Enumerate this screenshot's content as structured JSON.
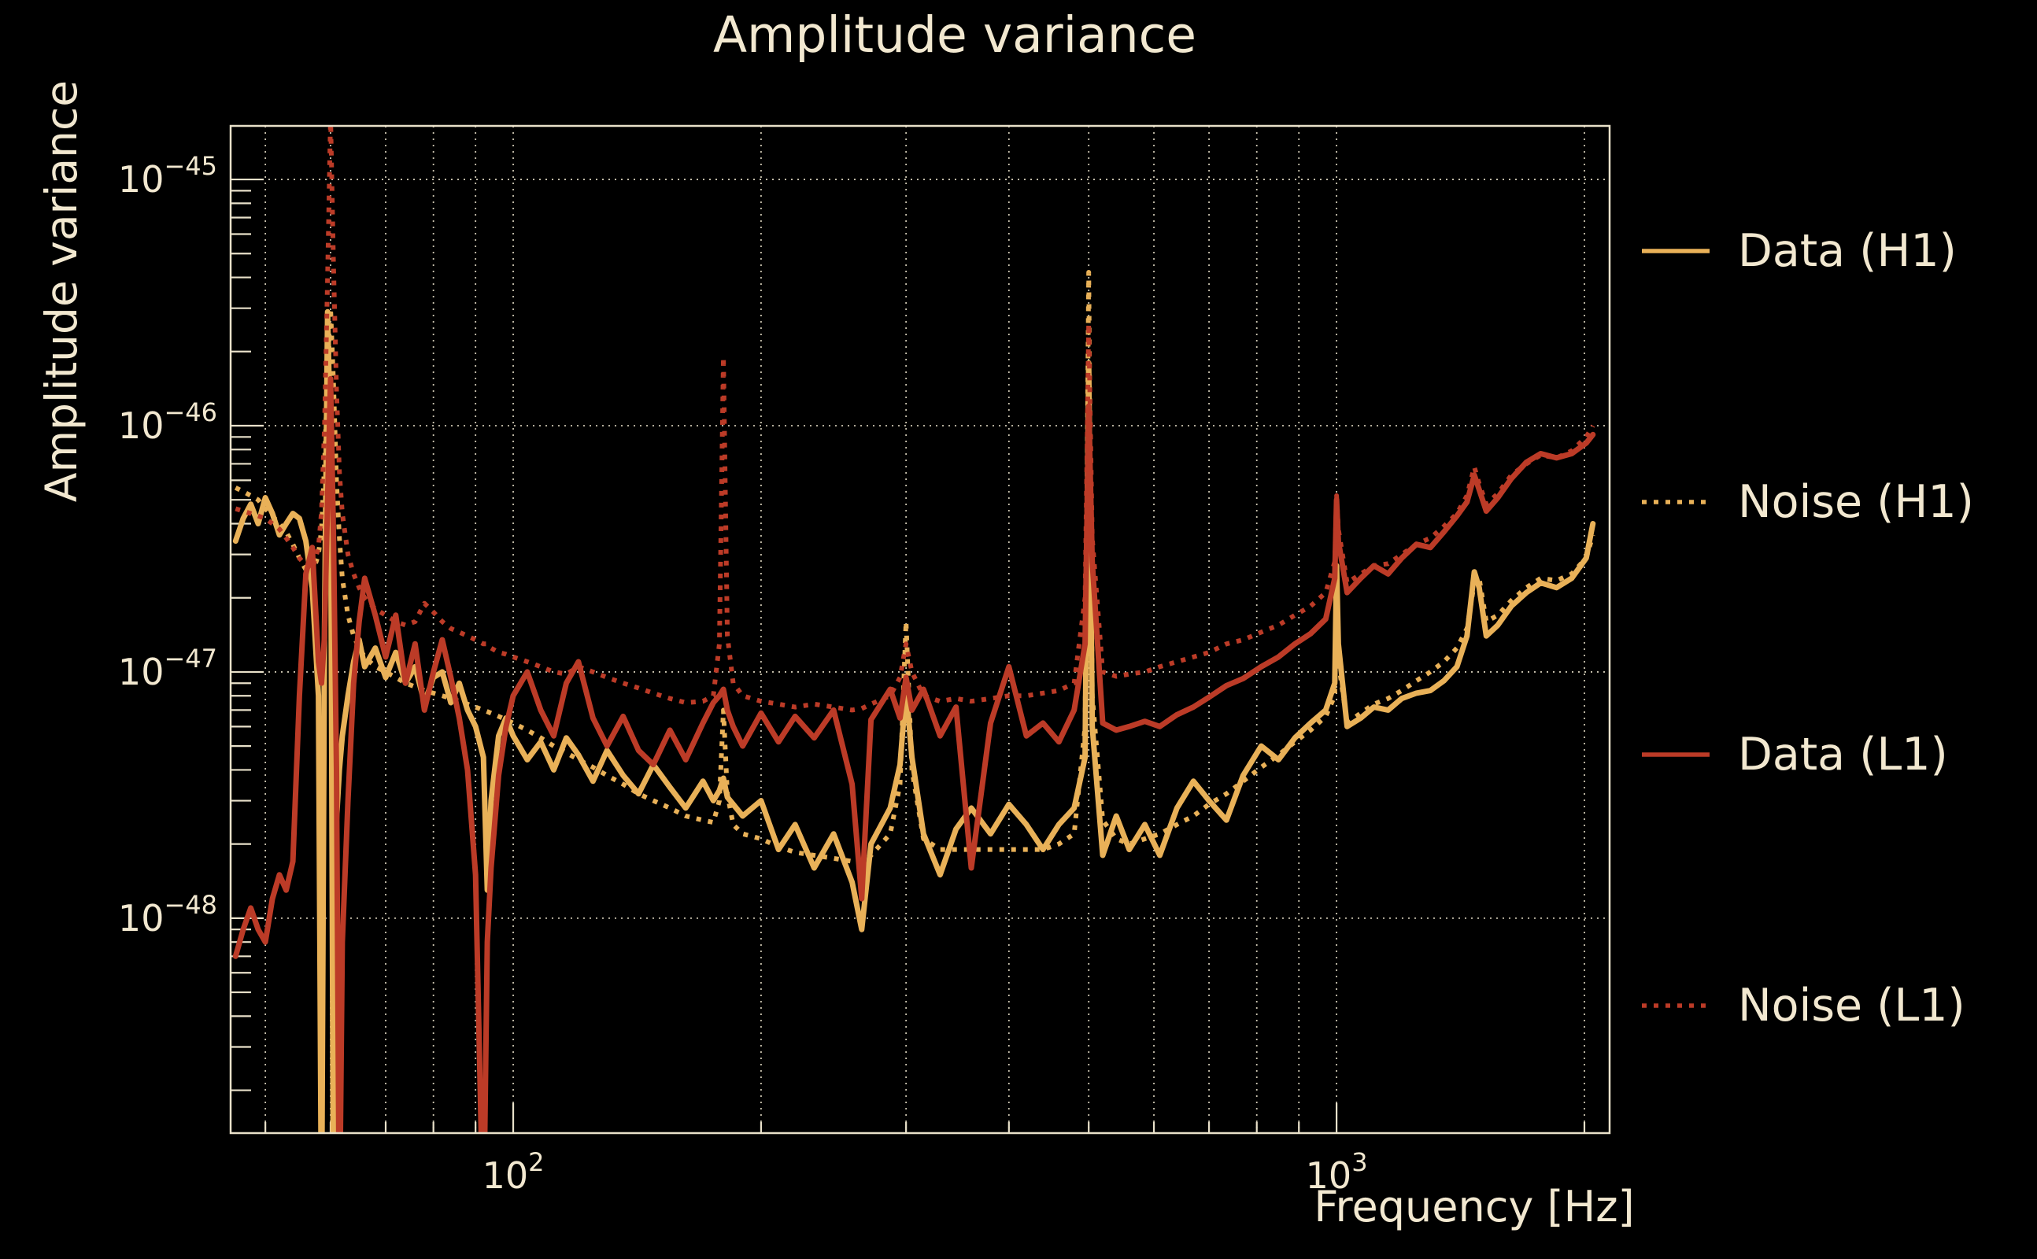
{
  "figure": {
    "title": "Amplitude variance",
    "background_color": "#000000",
    "text_color": "#f2e8d0",
    "grid_color": "#efe7cf",
    "spine_color": "#e9e1ca",
    "accent_gold": "#e9b158",
    "accent_red": "#bc3b27"
  },
  "legend": {
    "items": [
      {
        "id": "data-h1",
        "label": "Data (H1)"
      },
      {
        "id": "noise-h1",
        "label": "Noise (H1)"
      },
      {
        "id": "data-l1",
        "label": "Data (L1)"
      },
      {
        "id": "noise-l1",
        "label": "Noise (L1)"
      }
    ]
  },
  "chart_data": {
    "type": "line",
    "title": "Amplitude variance",
    "xlabel": "Frequency [Hz]",
    "ylabel": "Amplitude variance",
    "x_scale": "log",
    "y_scale": "log",
    "xlim": [
      45.37,
      2146
    ],
    "ylim": [
      1.34e-49,
      1.65e-45
    ],
    "grid": "dotted",
    "legend_position": "right-outside",
    "x_gridlines": [
      50,
      60,
      70,
      80,
      90,
      100,
      200,
      300,
      400,
      500,
      600,
      700,
      800,
      900,
      1000,
      2000
    ],
    "x_ticks": [
      {
        "value": 100,
        "base": "10",
        "exp": "2"
      },
      {
        "value": 1000,
        "base": "10",
        "exp": "3"
      }
    ],
    "y_ticks": [
      {
        "value": 1e-45,
        "base": "10",
        "exp": "−45"
      },
      {
        "value": 1e-46,
        "base": "10",
        "exp": "−46"
      },
      {
        "value": 1e-47,
        "base": "10",
        "exp": "−47"
      },
      {
        "value": 1e-48,
        "base": "10",
        "exp": "−48"
      }
    ],
    "frequencies_hz": [
      46,
      47,
      48,
      49,
      50,
      51,
      52,
      53,
      54,
      55,
      56,
      57,
      58,
      58.5,
      59,
      59.5,
      60,
      60.5,
      61,
      61.5,
      62,
      63,
      64,
      65,
      66,
      68,
      70,
      72,
      74,
      76,
      78,
      80,
      82,
      84,
      86,
      88,
      90,
      92,
      93,
      94,
      96,
      98,
      100,
      104,
      108,
      112,
      116,
      120,
      125,
      130,
      136,
      142,
      148,
      155,
      162,
      170,
      175,
      178,
      180,
      182,
      185,
      190,
      200,
      210,
      220,
      232,
      245,
      258,
      265,
      272,
      287,
      295,
      300,
      305,
      315,
      330,
      345,
      360,
      380,
      400,
      420,
      440,
      460,
      480,
      495,
      500,
      505,
      520,
      540,
      560,
      585,
      610,
      640,
      670,
      700,
      735,
      770,
      810,
      850,
      890,
      930,
      970,
      995,
      1000,
      1005,
      1030,
      1070,
      1110,
      1155,
      1200,
      1250,
      1300,
      1350,
      1400,
      1440,
      1470,
      1490,
      1520,
      1570,
      1630,
      1700,
      1770,
      1850,
      1930,
      2010,
      2048
    ],
    "series": [
      {
        "id": "data-h1",
        "name": "Data (H1)",
        "color": "#e9b158",
        "style": "solid",
        "values": [
          3.4e-47,
          4.2e-47,
          4.8e-47,
          4e-47,
          5.1e-47,
          4.4e-47,
          3.6e-47,
          4e-47,
          4.4e-47,
          4.2e-47,
          3.4e-47,
          2.2e-47,
          8e-48,
          5e-50,
          1.5e-47,
          2.9e-46,
          8e-47,
          5e-50,
          2.5e-48,
          4e-48,
          5.5e-48,
          8e-48,
          1.1e-47,
          1.35e-47,
          1.05e-47,
          1.25e-47,
          9.5e-48,
          1.2e-47,
          9e-48,
          1.05e-47,
          7.5e-48,
          9.5e-48,
          1e-47,
          7.5e-48,
          9e-48,
          7e-48,
          6e-48,
          4.5e-48,
          1.3e-48,
          3e-48,
          5.5e-48,
          6.5e-48,
          5.5e-48,
          4.4e-48,
          5.2e-48,
          4e-48,
          5.4e-48,
          4.6e-48,
          3.6e-48,
          4.8e-48,
          3.8e-48,
          3.2e-48,
          4.2e-48,
          3.4e-48,
          2.8e-48,
          3.6e-48,
          3e-48,
          3.3e-48,
          3.7e-48,
          3.1e-48,
          2.9e-48,
          2.6e-48,
          3e-48,
          1.9e-48,
          2.4e-48,
          1.6e-48,
          2.2e-48,
          1.4e-48,
          9e-49,
          2e-48,
          2.8e-48,
          4.2e-48,
          8.5e-48,
          4.5e-48,
          2.2e-48,
          1.5e-48,
          2.3e-48,
          2.8e-48,
          2.2e-48,
          2.9e-48,
          2.4e-48,
          1.9e-48,
          2.4e-48,
          2.8e-48,
          4.5e-48,
          1.8e-46,
          6e-48,
          1.8e-48,
          2.6e-48,
          1.9e-48,
          2.4e-48,
          1.8e-48,
          2.8e-48,
          3.6e-48,
          3e-48,
          2.5e-48,
          3.8e-48,
          5e-48,
          4.4e-48,
          5.4e-48,
          6.2e-48,
          7e-48,
          9e-48,
          2.7e-47,
          1.3e-47,
          6e-48,
          6.5e-48,
          7.2e-48,
          7e-48,
          7.8e-48,
          8.2e-48,
          8.4e-48,
          9.2e-48,
          1.05e-47,
          1.4e-47,
          2.55e-47,
          2.2e-47,
          1.4e-47,
          1.55e-47,
          1.85e-47,
          2.1e-47,
          2.3e-47,
          2.2e-47,
          2.4e-47,
          2.9e-47,
          4e-47
        ]
      },
      {
        "id": "noise-h1",
        "name": "Noise (H1)",
        "color": "#e9b158",
        "style": "dotted",
        "values": [
          5.6e-47,
          5.4e-47,
          5.2e-47,
          5e-47,
          4.6e-47,
          4.3e-47,
          4e-47,
          3.7e-47,
          3.3e-47,
          2.9e-47,
          2.6e-47,
          2.5e-47,
          3e-47,
          3.8e-47,
          7e-47,
          1.6e-46,
          3e-46,
          1.5e-46,
          6e-47,
          3.5e-47,
          2.4e-47,
          1.7e-47,
          1.4e-47,
          1.25e-47,
          1.15e-47,
          1.05e-47,
          1e-47,
          9.5e-48,
          9e-48,
          8.7e-48,
          8.4e-48,
          8.2e-48,
          8e-48,
          7.8e-48,
          7.6e-48,
          7.4e-48,
          7.2e-48,
          7e-48,
          6.9e-48,
          6.8e-48,
          6.6e-48,
          6.4e-48,
          6.2e-48,
          5.8e-48,
          5.4e-48,
          5e-48,
          4.7e-48,
          4.4e-48,
          4.1e-48,
          3.8e-48,
          3.5e-48,
          3.2e-48,
          3e-48,
          2.8e-48,
          2.6e-48,
          2.5e-48,
          2.45e-48,
          3e-48,
          7e-48,
          3.2e-48,
          2.4e-48,
          2.2e-48,
          2.1e-48,
          1.95e-48,
          1.85e-48,
          1.8e-48,
          1.75e-48,
          1.7e-48,
          1.7e-48,
          1.8e-48,
          2.2e-48,
          3.5e-48,
          1.6e-47,
          4e-48,
          2.1e-48,
          1.9e-48,
          1.9e-48,
          1.9e-48,
          1.9e-48,
          1.9e-48,
          1.9e-48,
          1.9e-48,
          2e-48,
          2.2e-48,
          6e-48,
          4.2e-46,
          8e-48,
          2.5e-48,
          2.1e-48,
          2e-48,
          2.1e-48,
          2.2e-48,
          2.4e-48,
          2.6e-48,
          2.9e-48,
          3.2e-48,
          3.6e-48,
          4.1e-48,
          4.6e-48,
          5.2e-48,
          5.8e-48,
          6.6e-48,
          8e-48,
          2.4e-47,
          1.1e-47,
          6.2e-48,
          6.8e-48,
          7.4e-48,
          7.8e-48,
          8.4e-48,
          9.2e-48,
          1e-47,
          1.1e-47,
          1.25e-47,
          1.5e-47,
          2.3e-47,
          2.4e-47,
          1.6e-47,
          1.7e-47,
          1.95e-47,
          2.2e-47,
          2.4e-47,
          2.35e-47,
          2.5e-47,
          2.9e-47,
          3.6e-47
        ]
      },
      {
        "id": "data-l1",
        "name": "Data (L1)",
        "color": "#bc3b27",
        "style": "solid",
        "values": [
          7e-49,
          9e-49,
          1.1e-48,
          9e-49,
          8e-49,
          1.2e-48,
          1.5e-48,
          1.3e-48,
          1.7e-48,
          8e-48,
          2.5e-47,
          3.2e-47,
          1.1e-47,
          9e-48,
          1.4e-47,
          5e-47,
          1.55e-46,
          3.5e-47,
          4e-48,
          5e-50,
          8e-49,
          3e-48,
          9e-48,
          1.6e-47,
          2.4e-47,
          1.7e-47,
          1.15e-47,
          1.7e-47,
          9e-48,
          1.3e-47,
          7e-48,
          1e-47,
          1.35e-47,
          9.5e-48,
          6.5e-48,
          4e-48,
          1.5e-48,
          5e-50,
          8e-49,
          1.6e-48,
          3.8e-48,
          6e-48,
          8e-48,
          1e-47,
          7e-48,
          5.5e-48,
          9e-48,
          1.1e-47,
          6.5e-48,
          5e-48,
          6.6e-48,
          4.8e-48,
          4.2e-48,
          5.8e-48,
          4.4e-48,
          6.2e-48,
          7.5e-48,
          8e-48,
          8.5e-48,
          7e-48,
          6e-48,
          5e-48,
          6.8e-48,
          5.2e-48,
          6.6e-48,
          5.4e-48,
          7e-48,
          3.5e-48,
          1.2e-48,
          6.4e-48,
          8.5e-48,
          6.5e-48,
          9.5e-48,
          7e-48,
          8.5e-48,
          5.5e-48,
          7.2e-48,
          1.6e-48,
          6.2e-48,
          1.05e-47,
          5.5e-48,
          6.2e-48,
          5.2e-48,
          7e-48,
          1.3e-47,
          1.2e-46,
          2.8e-47,
          6.2e-48,
          5.8e-48,
          6e-48,
          6.3e-48,
          6e-48,
          6.7e-48,
          7.2e-48,
          7.9e-48,
          8.8e-48,
          9.4e-48,
          1.05e-47,
          1.15e-47,
          1.3e-47,
          1.43e-47,
          1.64e-47,
          2.4e-47,
          5e-47,
          3.4e-47,
          2.1e-47,
          2.4e-47,
          2.7e-47,
          2.5e-47,
          2.9e-47,
          3.3e-47,
          3.2e-47,
          3.7e-47,
          4.3e-47,
          4.9e-47,
          6.3e-47,
          5.5e-47,
          4.5e-47,
          5.1e-47,
          6.1e-47,
          7.1e-47,
          7.7e-47,
          7.4e-47,
          7.7e-47,
          8.5e-47,
          9.2e-47
        ]
      },
      {
        "id": "noise-l1",
        "name": "Noise (L1)",
        "color": "#bc3b27",
        "style": "dotted",
        "values": [
          4.6e-47,
          4.5e-47,
          4.4e-47,
          4.3e-47,
          4.2e-47,
          4e-47,
          3.8e-47,
          3.5e-47,
          3.2e-47,
          2.9e-47,
          2.7e-47,
          2.6e-47,
          3.2e-47,
          4.5e-47,
          1e-46,
          4e-46,
          1.8e-45,
          4.5e-46,
          1.4e-46,
          6.5e-47,
          4.4e-47,
          3e-47,
          2.5e-47,
          2.2e-47,
          2e-47,
          1.8e-47,
          1.7e-47,
          1.6e-47,
          1.55e-47,
          1.6e-47,
          1.9e-47,
          1.75e-47,
          1.6e-47,
          1.5e-47,
          1.45e-47,
          1.4e-47,
          1.35e-47,
          1.3e-47,
          1.3e-47,
          1.25e-47,
          1.2e-47,
          1.18e-47,
          1.15e-47,
          1.1e-47,
          1.05e-47,
          1e-47,
          9.8e-48,
          1.05e-47,
          1e-47,
          9.5e-48,
          9e-48,
          8.6e-48,
          8.2e-48,
          7.8e-48,
          7.5e-48,
          7.6e-48,
          8e-48,
          1.3e-47,
          1.9e-46,
          1.4e-47,
          9e-48,
          8e-48,
          7.6e-48,
          7.4e-48,
          7.2e-48,
          7.4e-48,
          7.2e-48,
          7e-48,
          7.1e-48,
          7.4e-48,
          8e-48,
          9.5e-48,
          1.3e-47,
          1e-47,
          8e-48,
          7.6e-48,
          7.8e-48,
          7.6e-48,
          7.8e-48,
          8e-48,
          8e-48,
          8.2e-48,
          8.4e-48,
          9e-48,
          2e-47,
          2.6e-46,
          3.5e-47,
          1e-47,
          9.6e-48,
          9.8e-48,
          1e-47,
          1.05e-47,
          1.1e-47,
          1.15e-47,
          1.2e-47,
          1.3e-47,
          1.35e-47,
          1.45e-47,
          1.55e-47,
          1.7e-47,
          1.85e-47,
          2.1e-47,
          2.8e-47,
          5.2e-47,
          3.8e-47,
          2.3e-47,
          2.5e-47,
          2.7e-47,
          2.75e-47,
          3e-47,
          3.3e-47,
          3.5e-47,
          3.9e-47,
          4.4e-47,
          5.2e-47,
          6.8e-47,
          5.8e-47,
          4.8e-47,
          5.3e-47,
          6.3e-47,
          7e-47,
          7.6e-47,
          7.4e-47,
          7.9e-47,
          9e-47,
          1e-46
        ]
      }
    ]
  }
}
